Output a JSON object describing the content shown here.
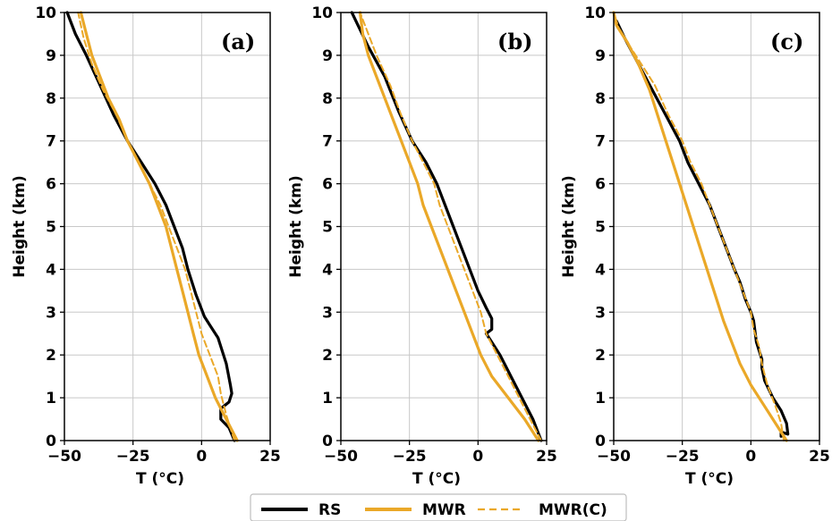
{
  "colors": {
    "rs": "#000000",
    "mwr": "#eaa828",
    "mwrc": "#eaa828",
    "grid": "#c8c8c8"
  },
  "chart_data": [
    {
      "type": "line",
      "panel_label": "(a)",
      "xlabel": "T (°C)",
      "ylabel": "Height (km)",
      "xlim": [
        -50,
        25
      ],
      "ylim": [
        0,
        10
      ],
      "xticks": [
        "−50",
        "−25",
        "0",
        "25"
      ],
      "yticks": [
        "0",
        "1",
        "2",
        "3",
        "4",
        "5",
        "6",
        "7",
        "8",
        "9",
        "10"
      ],
      "grid": true,
      "series": [
        {
          "name": "RS",
          "style": "solid-black",
          "points": [
            [
              12,
              0
            ],
            [
              10,
              0.3
            ],
            [
              7,
              0.5
            ],
            [
              7,
              0.75
            ],
            [
              10,
              0.9
            ],
            [
              11,
              1.1
            ],
            [
              10.5,
              1.3
            ],
            [
              9,
              1.8
            ],
            [
              6,
              2.4
            ],
            [
              3,
              2.7
            ],
            [
              1,
              2.9
            ],
            [
              -2,
              3.4
            ],
            [
              -5,
              4.0
            ],
            [
              -7,
              4.5
            ],
            [
              -10,
              5.0
            ],
            [
              -13,
              5.5
            ],
            [
              -17,
              6.0
            ],
            [
              -22,
              6.5
            ],
            [
              -27,
              7.0
            ],
            [
              -32,
              7.6
            ],
            [
              -37,
              8.3
            ],
            [
              -42,
              9.0
            ],
            [
              -46,
              9.5
            ],
            [
              -49,
              10.0
            ]
          ]
        },
        {
          "name": "MWR",
          "style": "solid-orange",
          "points": [
            [
              13,
              0
            ],
            [
              9,
              0.5
            ],
            [
              5,
              1.0
            ],
            [
              2,
              1.5
            ],
            [
              -1,
              2.0
            ],
            [
              -3,
              2.5
            ],
            [
              -5,
              3.0
            ],
            [
              -7,
              3.5
            ],
            [
              -9,
              4.0
            ],
            [
              -11,
              4.5
            ],
            [
              -13,
              5.0
            ],
            [
              -16,
              5.5
            ],
            [
              -19,
              6.0
            ],
            [
              -23,
              6.5
            ],
            [
              -27,
              7.0
            ],
            [
              -30,
              7.5
            ],
            [
              -34,
              8.0
            ],
            [
              -37,
              8.5
            ],
            [
              -40,
              9.0
            ],
            [
              -42,
              9.5
            ],
            [
              -44,
              10.0
            ]
          ]
        },
        {
          "name": "MWR(C)",
          "style": "dashed-orange",
          "points": [
            [
              12,
              0
            ],
            [
              9,
              0.6
            ],
            [
              7,
              1.1
            ],
            [
              6,
              1.5
            ],
            [
              3,
              2.0
            ],
            [
              0,
              2.5
            ],
            [
              -2,
              3.0
            ],
            [
              -4,
              3.5
            ],
            [
              -6,
              4.0
            ],
            [
              -9,
              4.5
            ],
            [
              -12,
              5.0
            ],
            [
              -15,
              5.5
            ],
            [
              -19,
              6.0
            ],
            [
              -23,
              6.5
            ],
            [
              -27,
              7.0
            ],
            [
              -31,
              7.6
            ],
            [
              -36,
              8.2
            ],
            [
              -40,
              8.8
            ],
            [
              -43,
              9.4
            ],
            [
              -45,
              10.0
            ]
          ]
        }
      ]
    },
    {
      "type": "line",
      "panel_label": "(b)",
      "xlabel": "T (°C)",
      "ylabel": "Height (km)",
      "xlim": [
        -50,
        25
      ],
      "ylim": [
        0,
        10
      ],
      "xticks": [
        "−50",
        "−25",
        "0",
        "25"
      ],
      "yticks": [
        "0",
        "1",
        "2",
        "3",
        "4",
        "5",
        "6",
        "7",
        "8",
        "9",
        "10"
      ],
      "grid": true,
      "series": [
        {
          "name": "RS",
          "style": "solid-black",
          "points": [
            [
              23,
              0
            ],
            [
              20,
              0.5
            ],
            [
              16,
              1.0
            ],
            [
              12,
              1.5
            ],
            [
              8,
              2.0
            ],
            [
              5,
              2.3
            ],
            [
              3,
              2.5
            ],
            [
              5,
              2.6
            ],
            [
              5,
              2.85
            ],
            [
              3,
              3.1
            ],
            [
              0,
              3.5
            ],
            [
              -3,
              4.0
            ],
            [
              -6,
              4.5
            ],
            [
              -9,
              5.0
            ],
            [
              -12,
              5.5
            ],
            [
              -15,
              6.0
            ],
            [
              -19,
              6.5
            ],
            [
              -24,
              7.0
            ],
            [
              -29,
              7.7
            ],
            [
              -34,
              8.5
            ],
            [
              -40,
              9.2
            ],
            [
              -43,
              9.6
            ],
            [
              -46,
              10.0
            ]
          ]
        },
        {
          "name": "MWR",
          "style": "solid-orange",
          "points": [
            [
              22,
              0
            ],
            [
              17,
              0.5
            ],
            [
              11,
              1.0
            ],
            [
              5,
              1.5
            ],
            [
              1,
              2.0
            ],
            [
              -2,
              2.5
            ],
            [
              -5,
              3.0
            ],
            [
              -8,
              3.5
            ],
            [
              -11,
              4.0
            ],
            [
              -14,
              4.5
            ],
            [
              -17,
              5.0
            ],
            [
              -20,
              5.5
            ],
            [
              -22,
              6.0
            ],
            [
              -25,
              6.5
            ],
            [
              -28,
              7.0
            ],
            [
              -31,
              7.5
            ],
            [
              -34,
              8.0
            ],
            [
              -37,
              8.5
            ],
            [
              -40,
              9.0
            ],
            [
              -42,
              9.5
            ],
            [
              -43,
              10.0
            ]
          ]
        },
        {
          "name": "MWR(C)",
          "style": "dashed-orange",
          "points": [
            [
              23,
              0
            ],
            [
              19,
              0.5
            ],
            [
              15,
              1.0
            ],
            [
              11,
              1.5
            ],
            [
              7,
              2.0
            ],
            [
              3,
              2.5
            ],
            [
              1,
              3.0
            ],
            [
              -2,
              3.5
            ],
            [
              -5,
              4.0
            ],
            [
              -8,
              4.5
            ],
            [
              -11,
              5.0
            ],
            [
              -14,
              5.5
            ],
            [
              -16,
              6.0
            ],
            [
              -20,
              6.5
            ],
            [
              -24,
              7.0
            ],
            [
              -28,
              7.6
            ],
            [
              -32,
              8.3
            ],
            [
              -37,
              9.0
            ],
            [
              -40,
              9.5
            ],
            [
              -43,
              10.0
            ]
          ]
        }
      ]
    },
    {
      "type": "line",
      "panel_label": "(c)",
      "xlabel": "T (°C)",
      "ylabel": "Height (km)",
      "xlim": [
        -50,
        25
      ],
      "ylim": [
        0,
        10
      ],
      "xticks": [
        "−50",
        "−25",
        "0",
        "25"
      ],
      "yticks": [
        "0",
        "1",
        "2",
        "3",
        "4",
        "5",
        "6",
        "7",
        "8",
        "9",
        "10"
      ],
      "grid": true,
      "series": [
        {
          "name": "RS",
          "style": "solid-black",
          "points": [
            [
              11,
              0.1
            ],
            [
              11,
              0.2
            ],
            [
              13.5,
              0.15
            ],
            [
              13,
              0.4
            ],
            [
              11,
              0.7
            ],
            [
              8,
              1.0
            ],
            [
              5,
              1.4
            ],
            [
              4,
              1.7
            ],
            [
              4,
              1.9
            ],
            [
              2,
              2.3
            ],
            [
              1,
              2.8
            ],
            [
              0,
              3.0
            ],
            [
              -2,
              3.3
            ],
            [
              -4,
              3.7
            ],
            [
              -6,
              4.0
            ],
            [
              -9,
              4.5
            ],
            [
              -12,
              5.0
            ],
            [
              -15,
              5.5
            ],
            [
              -19,
              6.0
            ],
            [
              -23,
              6.5
            ],
            [
              -26,
              7.0
            ],
            [
              -31,
              7.6
            ],
            [
              -36,
              8.2
            ],
            [
              -41,
              8.8
            ],
            [
              -46,
              9.4
            ],
            [
              -49,
              9.8
            ]
          ]
        },
        {
          "name": "MWR",
          "style": "solid-orange",
          "points": [
            [
              13,
              0
            ],
            [
              9,
              0.4
            ],
            [
              5,
              0.8
            ],
            [
              0,
              1.3
            ],
            [
              -4,
              1.8
            ],
            [
              -7,
              2.3
            ],
            [
              -10,
              2.8
            ],
            [
              -13,
              3.4
            ],
            [
              -16,
              4.0
            ],
            [
              -19,
              4.6
            ],
            [
              -22,
              5.2
            ],
            [
              -25,
              5.8
            ],
            [
              -28,
              6.4
            ],
            [
              -31,
              7.0
            ],
            [
              -34,
              7.6
            ],
            [
              -37,
              8.2
            ],
            [
              -41,
              8.8
            ],
            [
              -45,
              9.3
            ],
            [
              -49,
              9.7
            ],
            [
              -50,
              10.0
            ]
          ]
        },
        {
          "name": "MWR(C)",
          "style": "dashed-orange",
          "points": [
            [
              12,
              0
            ],
            [
              11,
              0.4
            ],
            [
              9,
              0.8
            ],
            [
              6,
              1.3
            ],
            [
              4,
              1.8
            ],
            [
              3,
              2.2
            ],
            [
              1,
              2.6
            ],
            [
              0,
              3.0
            ],
            [
              -3,
              3.5
            ],
            [
              -6,
              4.0
            ],
            [
              -9,
              4.5
            ],
            [
              -12,
              5.0
            ],
            [
              -15,
              5.5
            ],
            [
              -18,
              6.0
            ],
            [
              -22,
              6.5
            ],
            [
              -25,
              7.0
            ],
            [
              -30,
              7.6
            ],
            [
              -35,
              8.3
            ],
            [
              -40,
              8.8
            ],
            [
              -45,
              9.3
            ],
            [
              -48,
              9.6
            ],
            [
              -50,
              10.0
            ]
          ]
        }
      ]
    }
  ],
  "legend": {
    "placement": "bottom-center",
    "entries": [
      "RS",
      "MWR",
      "MWR(C)"
    ]
  }
}
